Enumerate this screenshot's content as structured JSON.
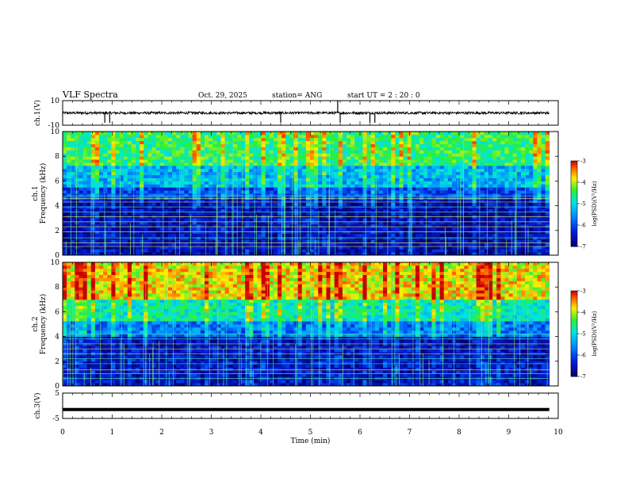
{
  "header": {
    "title": "VLF Spectra",
    "date": "Oct. 29, 2025",
    "station": "station= ANG",
    "start": "start  UT =   2 : 20 : 0"
  },
  "chart_data": [
    {
      "type": "line",
      "name": "ch1-waveform",
      "ylabel": "ch.1(V)",
      "ylim": [
        -10,
        10
      ],
      "yticks": [
        "10",
        "-10"
      ],
      "baseline": 0,
      "noise_amplitude": 1,
      "spikes_down_at_min": [
        0.85,
        0.95,
        4.4,
        5.6,
        6.2,
        6.3
      ],
      "spikes_up_at_min": [
        5.55
      ],
      "x_range_min": [
        0,
        9.82
      ]
    },
    {
      "type": "heatmap",
      "name": "ch1-spectrogram",
      "ylabel": "ch.1",
      "ylabel2": "Frequency (kHz)",
      "ylim": [
        0,
        10
      ],
      "yticks": [
        "0",
        "2",
        "4",
        "6",
        "8",
        "10"
      ],
      "colorbar": {
        "label": "log(PSD)(V²/Hz)",
        "range": [
          -7,
          -3
        ],
        "ticks": [
          "-3",
          "-4",
          "-5",
          "-6",
          "-7"
        ]
      },
      "bands_khz": [
        {
          "from": 0,
          "to": 4.5,
          "log_psd": -6.6
        },
        {
          "from": 4.5,
          "to": 5.6,
          "log_psd": -6.0
        },
        {
          "from": 5.6,
          "to": 7.3,
          "log_psd": -5.3
        },
        {
          "from": 7.3,
          "to": 10,
          "log_psd": -4.5
        }
      ],
      "tone_lines_khz": [
        0.7,
        1.0,
        1.4,
        1.9,
        2.3,
        2.7,
        3.1,
        3.5,
        3.9,
        4.3,
        4.6,
        4.8
      ]
    },
    {
      "type": "heatmap",
      "name": "ch2-spectrogram",
      "ylabel": "ch.2",
      "ylabel2": "Frequency (kHz)",
      "ylim": [
        0,
        10
      ],
      "yticks": [
        "0",
        "2",
        "4",
        "6",
        "8",
        "10"
      ],
      "colorbar": {
        "label": "log(PSD)(V²/Hz)",
        "range": [
          -7,
          -3
        ],
        "ticks": [
          "-3",
          "-4",
          "-5",
          "-6",
          "-7"
        ]
      },
      "bands_khz": [
        {
          "from": 0,
          "to": 4.0,
          "log_psd": -6.5
        },
        {
          "from": 4.0,
          "to": 5.2,
          "log_psd": -5.7
        },
        {
          "from": 5.2,
          "to": 7.0,
          "log_psd": -4.8
        },
        {
          "from": 7.0,
          "to": 10,
          "log_psd": -3.8
        }
      ],
      "tone_lines_khz": [
        0.6,
        1.0,
        1.3,
        1.8,
        2.2,
        2.6,
        3.0,
        3.4,
        3.8,
        4.2
      ]
    },
    {
      "type": "line",
      "name": "ch3-waveform",
      "ylabel": "ch.3(V)",
      "ylim": [
        -5,
        5
      ],
      "yticks": [
        "5",
        "-5"
      ],
      "baseline": -1.5,
      "x_range_min": [
        0,
        9.82
      ]
    }
  ],
  "x_axis": {
    "label": "Time  (min)",
    "range": [
      0,
      10
    ],
    "ticks": [
      "0",
      "1",
      "2",
      "3",
      "4",
      "5",
      "6",
      "7",
      "8",
      "9",
      "10"
    ]
  }
}
